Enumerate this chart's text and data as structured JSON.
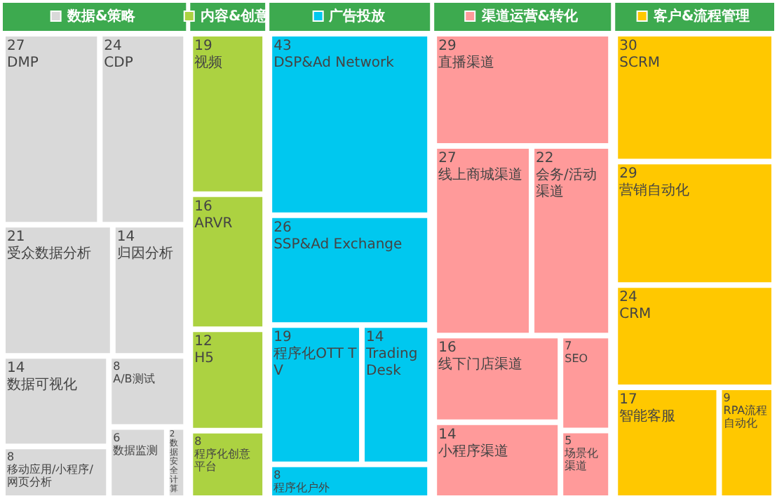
{
  "chart_data": {
    "type": "other",
    "data_labels": true,
    "legend": "top",
    "categories": [
      "DMP",
      "CDP",
      "受众数据分析",
      "归因分析",
      "数据可视化",
      "移动应用/小程序/网页分析",
      "A/B测试",
      "数据监测",
      "数据安全计算",
      "视频",
      "ARVR",
      "H5",
      "程序化创意平台",
      "DSP&Ad Network",
      "SSP&Ad Exchange",
      "程序化OTT TV",
      "Trading Desk",
      "程序化户外",
      "直播渠道",
      "线上商城渠道",
      "会务/活动渠道",
      "线下门店渠道",
      "小程序渠道",
      "SEO",
      "场景化渠道",
      "SCRM",
      "营销自动化",
      "CRM",
      "智能客服",
      "RPA流程自动化"
    ],
    "series": [
      {
        "name": "数据&策略",
        "color": "#d9d9d9",
        "values": [
          27,
          24,
          21,
          14,
          14,
          8,
          8,
          6,
          2,
          null,
          null,
          null,
          null,
          null,
          null,
          null,
          null,
          null,
          null,
          null,
          null,
          null,
          null,
          null,
          null,
          null,
          null,
          null,
          null,
          null
        ]
      },
      {
        "name": "内容&创意",
        "color": "#acd241",
        "values": [
          null,
          null,
          null,
          null,
          null,
          null,
          null,
          null,
          null,
          19,
          16,
          12,
          8,
          null,
          null,
          null,
          null,
          null,
          null,
          null,
          null,
          null,
          null,
          null,
          null,
          null,
          null,
          null,
          null,
          null
        ]
      },
      {
        "name": "广告投放",
        "color": "#00c8ef",
        "values": [
          null,
          null,
          null,
          null,
          null,
          null,
          null,
          null,
          null,
          null,
          null,
          null,
          null,
          43,
          26,
          19,
          14,
          8,
          null,
          null,
          null,
          null,
          null,
          null,
          null,
          null,
          null,
          null,
          null,
          null
        ]
      },
      {
        "name": "渠道运营&转化",
        "color": "#ff9a9a",
        "values": [
          null,
          null,
          null,
          null,
          null,
          null,
          null,
          null,
          null,
          null,
          null,
          null,
          null,
          null,
          null,
          null,
          null,
          null,
          29,
          27,
          22,
          16,
          14,
          7,
          5,
          null,
          null,
          null,
          null,
          null
        ]
      },
      {
        "name": "客户&流程管理",
        "color": "#ffc800",
        "values": [
          null,
          null,
          null,
          null,
          null,
          null,
          null,
          null,
          null,
          null,
          null,
          null,
          null,
          null,
          null,
          null,
          null,
          null,
          null,
          null,
          null,
          null,
          null,
          null,
          null,
          30,
          29,
          24,
          17,
          9
        ]
      }
    ]
  }
}
